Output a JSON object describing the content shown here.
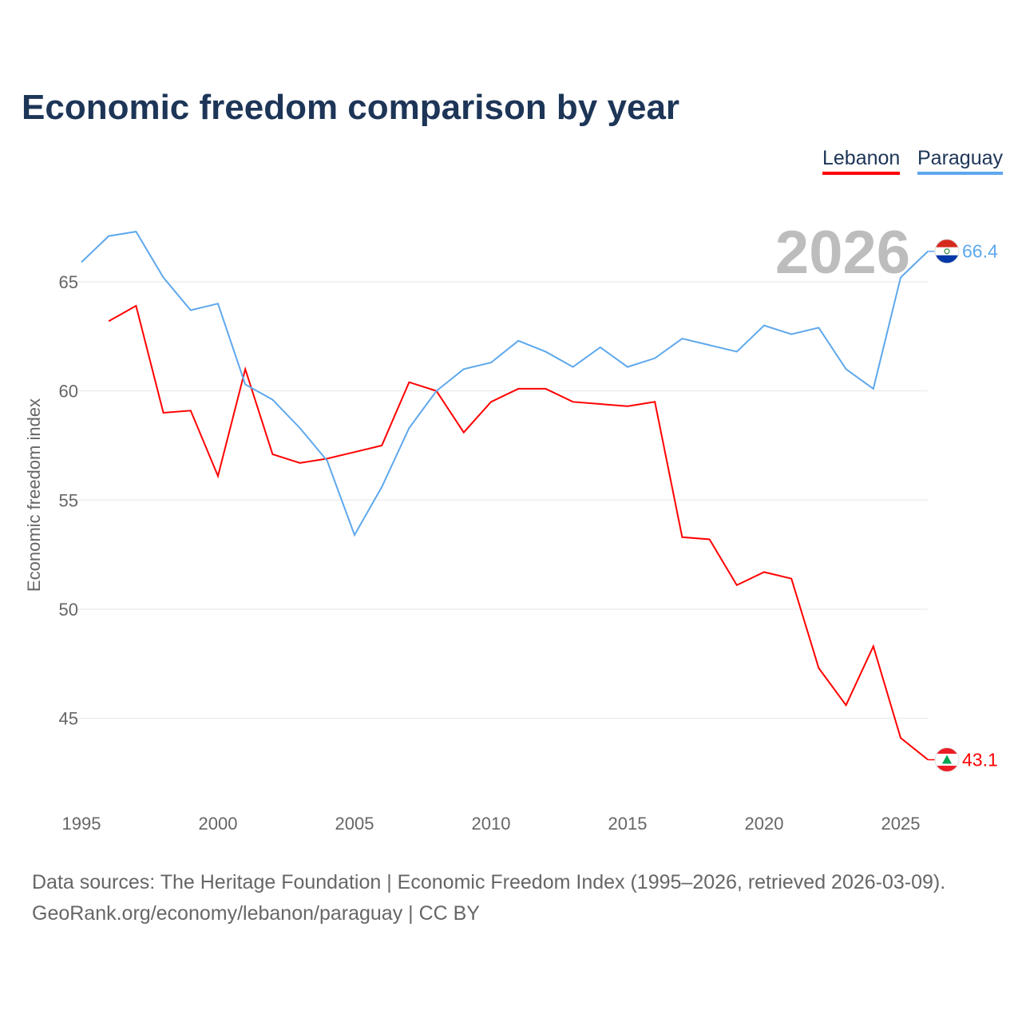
{
  "chart_data": {
    "type": "line",
    "title": "Economic freedom comparison by year",
    "xlabel": "",
    "ylabel": "Economic freedom index",
    "xlim": [
      1995,
      2026
    ],
    "ylim": [
      41.5,
      68
    ],
    "x_ticks": [
      1995,
      2000,
      2005,
      2010,
      2015,
      2020,
      2025
    ],
    "y_ticks": [
      45,
      50,
      55,
      60,
      65
    ],
    "grid": "horizontal",
    "legend_position": "top-right",
    "year_label": "2026",
    "series": [
      {
        "name": "Lebanon",
        "color": "#ff0000",
        "end_label": "43.1",
        "x": [
          1996,
          1997,
          1998,
          1999,
          2000,
          2001,
          2002,
          2003,
          2004,
          2005,
          2006,
          2007,
          2008,
          2009,
          2010,
          2011,
          2012,
          2013,
          2014,
          2015,
          2016,
          2017,
          2018,
          2019,
          2020,
          2021,
          2022,
          2023,
          2024,
          2025,
          2026
        ],
        "values": [
          63.2,
          63.9,
          59.0,
          59.1,
          56.1,
          61.0,
          57.1,
          56.7,
          56.9,
          57.2,
          57.5,
          60.4,
          60.0,
          58.1,
          59.5,
          60.1,
          60.1,
          59.5,
          59.4,
          59.3,
          59.5,
          53.3,
          53.2,
          51.1,
          51.7,
          51.4,
          47.3,
          45.6,
          48.3,
          44.1,
          43.1
        ]
      },
      {
        "name": "Paraguay",
        "color": "#5ea8ec",
        "end_label": "66.4",
        "x": [
          1995,
          1996,
          1997,
          1998,
          1999,
          2000,
          2001,
          2002,
          2003,
          2004,
          2005,
          2006,
          2007,
          2008,
          2009,
          2010,
          2011,
          2012,
          2013,
          2014,
          2015,
          2016,
          2017,
          2018,
          2019,
          2020,
          2021,
          2022,
          2023,
          2024,
          2025,
          2026
        ],
        "values": [
          65.9,
          67.1,
          67.3,
          65.2,
          63.7,
          64.0,
          60.3,
          59.6,
          58.3,
          56.8,
          53.4,
          55.6,
          58.3,
          60.0,
          61.0,
          61.3,
          62.3,
          61.8,
          61.1,
          62.0,
          61.1,
          61.5,
          62.4,
          62.1,
          61.8,
          63.0,
          62.6,
          62.9,
          61.0,
          60.1,
          65.2,
          66.4
        ]
      }
    ]
  },
  "footer": {
    "line1": "Data sources: The Heritage Foundation | Economic Freedom Index (1995–2026, retrieved 2026-03-09).",
    "line2": "GeoRank.org/economy/lebanon/paraguay | CC BY"
  }
}
